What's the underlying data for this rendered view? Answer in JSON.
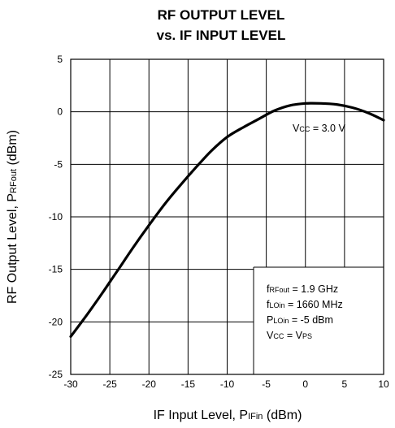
{
  "chart_data": {
    "type": "line",
    "title_line1": "RF OUTPUT LEVEL",
    "title_line2": "vs. IF INPUT LEVEL",
    "xlabel": {
      "main": "IF Input Level, P",
      "sub": "IFin",
      "tail": " (dBm)"
    },
    "ylabel": {
      "main": "RF Output Level, P",
      "sub": "RFout",
      "tail": " (dBm)"
    },
    "xlim": [
      -30,
      10
    ],
    "ylim": [
      -25,
      5
    ],
    "xticks": [
      -30,
      -25,
      -20,
      -15,
      -10,
      -5,
      0,
      5,
      10
    ],
    "yticks": [
      5,
      0,
      -5,
      -10,
      -15,
      -20,
      -25
    ],
    "xtick_labels": [
      "-30",
      "-25",
      "-20",
      "-15",
      "-10",
      "-5",
      "0",
      "5",
      "10"
    ],
    "ytick_labels": [
      "5",
      "0",
      "-5",
      "-10",
      "-15",
      "-20",
      "-25"
    ],
    "grid": true,
    "series": [
      {
        "x": [
          -30,
          -28,
          -26,
          -24,
          -22,
          -20,
          -18,
          -16,
          -14,
          -12,
          -10,
          -8,
          -6,
          -4,
          -2,
          0,
          2,
          4,
          6,
          8,
          10
        ],
        "y": [
          -21.4,
          -19.4,
          -17.3,
          -15.1,
          -12.9,
          -10.8,
          -8.8,
          -7.0,
          -5.3,
          -3.7,
          -2.4,
          -1.5,
          -0.7,
          0.1,
          0.6,
          0.8,
          0.8,
          0.7,
          0.4,
          -0.1,
          -0.8
        ]
      }
    ],
    "annotations": {
      "vcc": {
        "main": "V",
        "sub": "CC",
        "tail": " = 3.0 V"
      },
      "conditions": [
        {
          "main": "f",
          "sub": "RFout",
          "tail": " = 1.9 GHz"
        },
        {
          "main": "f",
          "sub": "LOin",
          "tail": " = 1660 MHz"
        },
        {
          "main": "P",
          "sub": "LOin",
          "tail": " = -5 dBm"
        },
        {
          "main": "V",
          "sub": "CC",
          "tail": " = V",
          "sub2": "PS"
        }
      ]
    }
  }
}
